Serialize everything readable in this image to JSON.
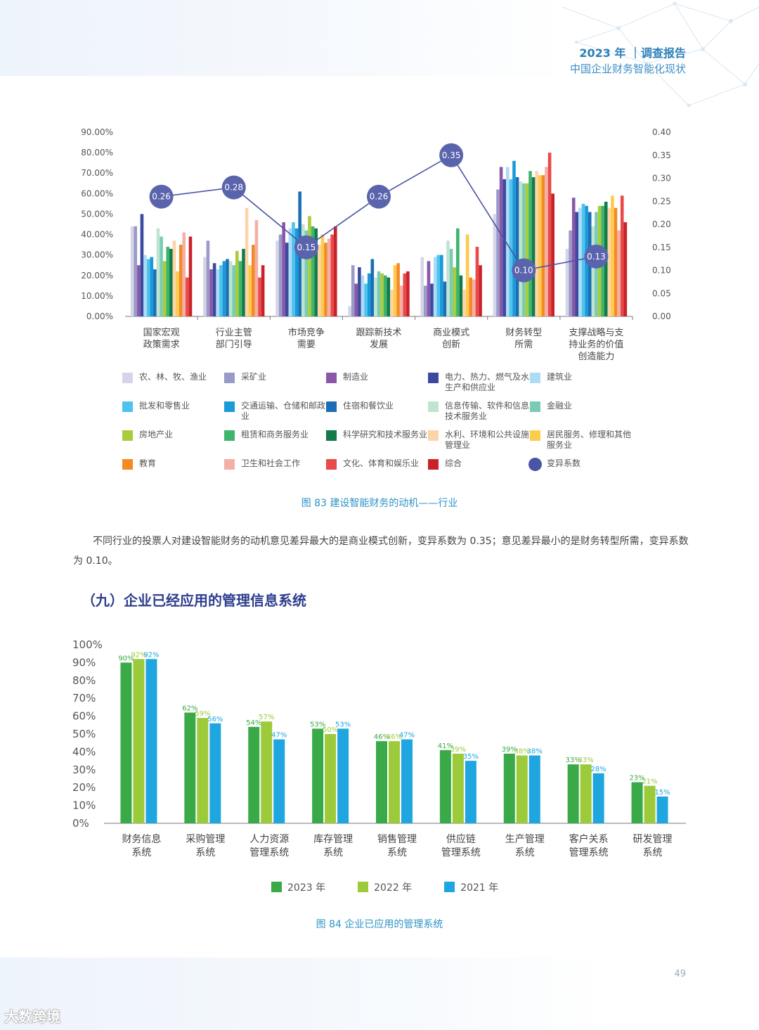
{
  "header": {
    "line1": "2023 年 ｜调查报告",
    "line2": "中国企业财务智能化现状"
  },
  "chart_data": [
    {
      "type": "bar",
      "title": "",
      "categories": [
        "国家宏观\n政策需求",
        "行业主管\n部门引导",
        "市场竞争\n需要",
        "跟踪新技术\n发展",
        "商业模式\n创新",
        "财务转型\n所需",
        "支撑战略与支\n持业务的价值\n创造能力"
      ],
      "left_axis": {
        "ticks": [
          "0.00%",
          "10.00%",
          "20.00%",
          "30.00%",
          "40.00%",
          "50.00%",
          "60.00%",
          "70.00%",
          "80.00%",
          "90.00%"
        ],
        "ylim": [
          0,
          90
        ]
      },
      "right_axis": {
        "ticks": [
          "0.00",
          "0.05",
          "0.10",
          "0.15",
          "0.20",
          "0.25",
          "0.30",
          "0.35",
          "0.40"
        ],
        "ylim": [
          0,
          0.4
        ]
      },
      "series": [
        {
          "name": "农、林、牧、渔业",
          "color": "#d5d5e8",
          "values": [
            44,
            29,
            37,
            5,
            29,
            50,
            33
          ]
        },
        {
          "name": "采矿业",
          "color": "#9a9ac9",
          "values": [
            44,
            37,
            40,
            25,
            15,
            62,
            42
          ]
        },
        {
          "name": "制造业",
          "color": "#8a58a8",
          "values": [
            25,
            23,
            46,
            16,
            27,
            73,
            58
          ]
        },
        {
          "name": "电力、热力、燃气及水生产和供应业",
          "color": "#3b4aa0",
          "values": [
            50,
            26,
            36,
            24,
            16,
            67,
            51
          ]
        },
        {
          "name": "建筑业",
          "color": "#aedcf5",
          "values": [
            30,
            23,
            43,
            20,
            29,
            73,
            53
          ]
        },
        {
          "name": "批发和零售业",
          "color": "#4ec3ef",
          "values": [
            28,
            25,
            46,
            16,
            30,
            67,
            55
          ]
        },
        {
          "name": "交通运输、仓储和邮政业",
          "color": "#1a9ad8",
          "values": [
            29,
            27,
            43,
            21,
            30,
            76,
            54
          ]
        },
        {
          "name": "住宿和餐饮业",
          "color": "#1b6eb5",
          "values": [
            23,
            28,
            61,
            28,
            17,
            68,
            51
          ]
        },
        {
          "name": "信息传输、软件和信息技术服务业",
          "color": "#bfe4cf",
          "values": [
            43,
            27,
            45,
            19,
            37,
            66,
            44
          ]
        },
        {
          "name": "金融业",
          "color": "#7acbb6",
          "values": [
            39,
            25,
            42,
            22,
            33,
            65,
            51
          ]
        },
        {
          "name": "房地产业",
          "color": "#a8cd3c",
          "values": [
            27,
            32,
            49,
            21,
            24,
            65,
            54
          ]
        },
        {
          "name": "租赁和商务服务业",
          "color": "#3fb56b",
          "values": [
            34,
            27,
            44,
            20,
            43,
            71,
            54
          ]
        },
        {
          "name": "科学研究和技术服务业",
          "color": "#137a4a",
          "values": [
            33,
            33,
            43,
            19,
            20,
            68,
            56
          ]
        },
        {
          "name": "水利、环境和公共设施管理业",
          "color": "#fcd4a8",
          "values": [
            37,
            53,
            35,
            13,
            13,
            71,
            53
          ]
        },
        {
          "name": "居民服务、修理和其他服务业",
          "color": "#fdcb4e",
          "values": [
            22,
            25,
            40,
            25,
            40,
            69,
            59
          ]
        },
        {
          "name": "教育",
          "color": "#f48a26",
          "values": [
            35,
            35,
            36,
            26,
            19,
            69,
            53
          ]
        },
        {
          "name": "卫生和社会工作",
          "color": "#f4b0a6",
          "values": [
            41,
            47,
            38,
            15,
            18,
            73,
            42
          ]
        },
        {
          "name": "文化、体育和娱乐业",
          "color": "#e84a4a",
          "values": [
            19,
            19,
            40,
            21,
            34,
            80,
            59
          ]
        },
        {
          "name": "综合",
          "color": "#c92228",
          "values": [
            39,
            25,
            44,
            22,
            25,
            60,
            46
          ]
        }
      ],
      "line_series": {
        "name": "变异系数",
        "color": "#4a54a4",
        "values": [
          0.26,
          0.28,
          0.15,
          0.26,
          0.35,
          0.1,
          0.13
        ],
        "labels": [
          "0.26",
          "0.28",
          "0.15",
          "0.26",
          "0.35",
          "0.10",
          "0.13"
        ]
      },
      "caption": "图 83   建设智能财务的动机——行业"
    },
    {
      "type": "bar",
      "title": "",
      "categories": [
        "财务信息\n系统",
        "采购管理\n系统",
        "人力资源\n管理系统",
        "库存管理\n系统",
        "销售管理\n系统",
        "供应链\n管理系统",
        "生产管理\n系统",
        "客户关系\n管理系统",
        "研发管理\n系统"
      ],
      "y_ticks": [
        "0%",
        "10%",
        "20%",
        "30%",
        "40%",
        "50%",
        "60%",
        "70%",
        "80%",
        "90%",
        "100%"
      ],
      "ylim": [
        0,
        100
      ],
      "series": [
        {
          "name": "2023 年",
          "color": "#3aaa48",
          "values": [
            90,
            62,
            54,
            53,
            46,
            41,
            39,
            33,
            23
          ],
          "labels": [
            "90%",
            "62%",
            "54%",
            "53%",
            "46%",
            "41%",
            "39%",
            "33%",
            "23%"
          ]
        },
        {
          "name": "2022 年",
          "color": "#9cca3b",
          "values": [
            92,
            59,
            57,
            50,
            46,
            39,
            38,
            33,
            21
          ],
          "labels": [
            "92%",
            "59%",
            "57%",
            "50%",
            "46%",
            "39%",
            "38%",
            "33%",
            "21%"
          ]
        },
        {
          "name": "2021 年",
          "color": "#1fa6e0",
          "values": [
            92,
            56,
            47,
            53,
            47,
            35,
            38,
            28,
            15
          ],
          "labels": [
            "92%",
            "56%",
            "47%",
            "53%",
            "47%",
            "35%",
            "38%",
            "28%",
            "15%"
          ]
        }
      ],
      "caption": "图 84   企业已应用的管理系统"
    }
  ],
  "paragraph": "不同行业的投票人对建设智能财务的动机意见差异最大的是商业模式创新，变异系数为 0.35；意见差异最小的是财务转型所需，变异系数为 0.10。",
  "section_title": "（九）企业已经应用的管理信息系统",
  "page_number": "49",
  "watermark": "大数跨境"
}
